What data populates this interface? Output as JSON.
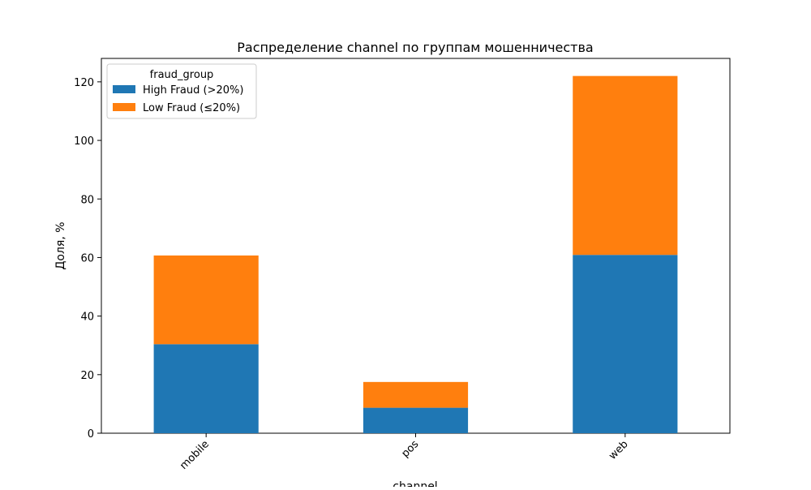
{
  "chart_data": {
    "type": "bar",
    "stacked": true,
    "title": "Распределение channel по группам мошенничества",
    "xlabel": "channel",
    "ylabel": "Доля, %",
    "categories": [
      "mobile",
      "pos",
      "web"
    ],
    "series": [
      {
        "name": "High Fraud (>20%)",
        "color": "#1f77b4",
        "values": [
          30.4,
          8.7,
          60.9
        ]
      },
      {
        "name": "Low Fraud (≤20%)",
        "color": "#ff7f0e",
        "values": [
          30.3,
          8.8,
          61.1
        ]
      }
    ],
    "ylim": [
      0,
      128
    ],
    "yticks": [
      0,
      20,
      40,
      60,
      80,
      100,
      120
    ],
    "legend": {
      "title": "fraud_group",
      "placement": "top-left"
    },
    "grid": false
  }
}
